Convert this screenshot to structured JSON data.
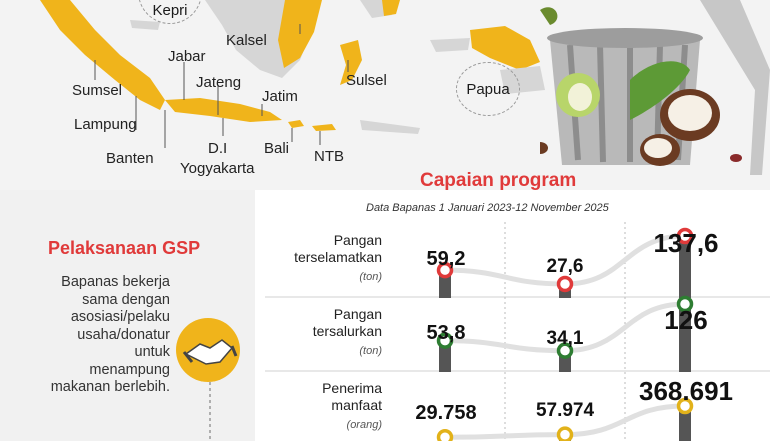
{
  "map": {
    "regions": {
      "kepri": "Kepri",
      "kalsel": "Kalsel",
      "jabar": "Jabar",
      "sumsel": "Sumsel",
      "jateng": "Jateng",
      "lampung": "Lampung",
      "jatim": "Jatim",
      "sulsel": "Sulsel",
      "papua": "Papua",
      "banten": "Banten",
      "diy_line1": "D.I",
      "diy_line2": "Yogyakarta",
      "bali": "Bali",
      "ntb": "NTB"
    },
    "colors": {
      "highlight": "#f0b41b",
      "land": "#d6d6d6",
      "sea": "#f3f3f3"
    }
  },
  "gsp": {
    "title": "Pelaksanaan GSP",
    "text_lines": [
      "Bapanas bekerja",
      "sama dengan",
      "asosiasi/pelaku",
      "usaha/donatur",
      "untuk",
      "menampung",
      "makanan berlebih."
    ]
  },
  "chart_data": {
    "type": "line",
    "title": "Capaian program",
    "subtitle": "Data Bapanas 1 Januari 2023-12 November 2025",
    "series": [
      {
        "name": "Pangan terselamatkan",
        "name_lines": [
          "Pangan",
          "terselamatkan"
        ],
        "unit": "(ton)",
        "values": [
          59.2,
          27.6,
          137.6
        ],
        "labels": [
          "59,2",
          "27,6",
          "137,6"
        ],
        "marker_color": "#e03a3a"
      },
      {
        "name": "Pangan tersalurkan",
        "name_lines": [
          "Pangan",
          "tersalurkan"
        ],
        "unit": "(ton)",
        "values": [
          53.8,
          34.1,
          126
        ],
        "labels": [
          "53,8",
          "34,1",
          "126"
        ],
        "marker_color": "#2e7d32"
      },
      {
        "name": "Penerima manfaat",
        "name_lines": [
          "Penerima",
          "manfaat"
        ],
        "unit": "(orang)",
        "values": [
          29758,
          57974,
          368691
        ],
        "labels": [
          "29.758",
          "57.974",
          "368.691"
        ],
        "marker_color": "#e2b21a"
      }
    ],
    "colors": {
      "title": "#e03a3a",
      "pole": "#555555"
    }
  }
}
